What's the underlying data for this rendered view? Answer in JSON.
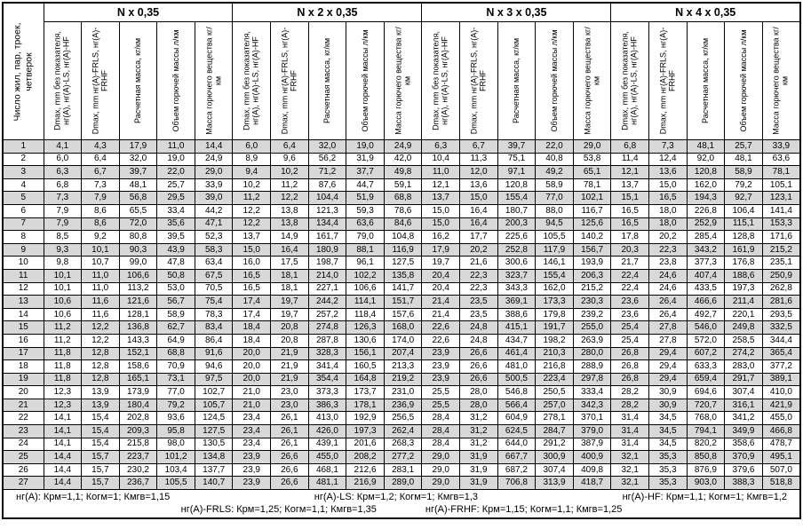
{
  "table": {
    "row_label_header": "Число жил, пар, троек, четверок",
    "groups": [
      "N x 0,35",
      "N x 2 x 0,35",
      "N x 3 x 0,35",
      "N x 4 x 0,35"
    ],
    "sub_headers": [
      "Dmax, mm без показателя, нг(А), нг(А)-LS, нг(А)-HF",
      "Dmax, mm нг(А)-FRLS, нг(А)-FRHF",
      "Расчетная масса, кг/км",
      "Объем горючей массы л/км",
      "Масса горючего вещества кг/км"
    ],
    "rows": [
      {
        "n": "1",
        "values": [
          "4,1",
          "4,3",
          "17,9",
          "11,0",
          "14,4",
          "6,0",
          "6,4",
          "32,0",
          "19,0",
          "24,9",
          "6,3",
          "6,7",
          "39,7",
          "22,0",
          "29,0",
          "6,8",
          "7,3",
          "48,1",
          "25,7",
          "33,9"
        ]
      },
      {
        "n": "2",
        "values": [
          "6,0",
          "6,4",
          "32,0",
          "19,0",
          "24,9",
          "8,9",
          "9,6",
          "56,2",
          "31,9",
          "42,0",
          "10,4",
          "11,3",
          "75,1",
          "40,8",
          "53,8",
          "11,4",
          "12,4",
          "92,0",
          "48,1",
          "63,6"
        ]
      },
      {
        "n": "3",
        "values": [
          "6,3",
          "6,7",
          "39,7",
          "22,0",
          "29,0",
          "9,4",
          "10,2",
          "71,2",
          "37,7",
          "49,8",
          "11,0",
          "12,0",
          "97,1",
          "49,2",
          "65,1",
          "12,1",
          "13,6",
          "120,8",
          "58,9",
          "78,1"
        ]
      },
      {
        "n": "4",
        "values": [
          "6,8",
          "7,3",
          "48,1",
          "25,7",
          "33,9",
          "10,2",
          "11,2",
          "87,6",
          "44,7",
          "59,1",
          "12,1",
          "13,6",
          "120,8",
          "58,9",
          "78,1",
          "13,7",
          "15,0",
          "162,0",
          "79,2",
          "105,1"
        ]
      },
      {
        "n": "5",
        "values": [
          "7,3",
          "7,9",
          "56,8",
          "29,5",
          "39,0",
          "11,2",
          "12,2",
          "104,4",
          "51,9",
          "68,8",
          "13,7",
          "15,0",
          "155,4",
          "77,0",
          "102,1",
          "15,1",
          "16,5",
          "194,3",
          "92,7",
          "123,1"
        ]
      },
      {
        "n": "6",
        "values": [
          "7,9",
          "8,6",
          "65,5",
          "33,4",
          "44,2",
          "12,2",
          "13,8",
          "121,3",
          "59,3",
          "78,6",
          "15,0",
          "16,4",
          "180,7",
          "88,0",
          "116,7",
          "16,5",
          "18,0",
          "226,8",
          "106,4",
          "141,4"
        ]
      },
      {
        "n": "7",
        "values": [
          "7,9",
          "8,6",
          "72,0",
          "35,6",
          "47,1",
          "12,2",
          "13,8",
          "134,4",
          "63,6",
          "84,6",
          "15,0",
          "16,4",
          "200,3",
          "94,5",
          "125,6",
          "16,5",
          "18,0",
          "252,9",
          "115,1",
          "153,3"
        ]
      },
      {
        "n": "8",
        "values": [
          "8,5",
          "9,2",
          "80,8",
          "39,5",
          "52,3",
          "13,7",
          "14,9",
          "161,7",
          "79,0",
          "104,8",
          "16,2",
          "17,7",
          "225,6",
          "105,5",
          "140,2",
          "17,8",
          "20,2",
          "285,4",
          "128,8",
          "171,6"
        ]
      },
      {
        "n": "9",
        "values": [
          "9,3",
          "10,1",
          "90,3",
          "43,9",
          "58,3",
          "15,0",
          "16,4",
          "180,9",
          "88,1",
          "116,9",
          "17,9",
          "20,2",
          "252,8",
          "117,9",
          "156,7",
          "20,3",
          "22,3",
          "343,2",
          "161,9",
          "215,2"
        ]
      },
      {
        "n": "10",
        "values": [
          "9,8",
          "10,7",
          "99,0",
          "47,8",
          "63,4",
          "16,0",
          "17,5",
          "198,7",
          "96,1",
          "127,5",
          "19,7",
          "21,6",
          "300,6",
          "146,1",
          "193,9",
          "21,7",
          "23,8",
          "377,3",
          "176,8",
          "235,1"
        ]
      },
      {
        "n": "11",
        "values": [
          "10,1",
          "11,0",
          "106,6",
          "50,8",
          "67,5",
          "16,5",
          "18,1",
          "214,0",
          "102,2",
          "135,8",
          "20,4",
          "22,3",
          "323,7",
          "155,4",
          "206,3",
          "22,4",
          "24,6",
          "407,4",
          "188,6",
          "250,9"
        ]
      },
      {
        "n": "12",
        "values": [
          "10,1",
          "11,0",
          "113,2",
          "53,0",
          "70,5",
          "16,5",
          "18,1",
          "227,1",
          "106,6",
          "141,7",
          "20,4",
          "22,3",
          "343,3",
          "162,0",
          "215,2",
          "22,4",
          "24,6",
          "433,5",
          "197,3",
          "262,8"
        ]
      },
      {
        "n": "13",
        "values": [
          "10,6",
          "11,6",
          "121,6",
          "56,7",
          "75,4",
          "17,4",
          "19,7",
          "244,2",
          "114,1",
          "151,7",
          "21,4",
          "23,5",
          "369,1",
          "173,3",
          "230,3",
          "23,6",
          "26,4",
          "466,6",
          "211,4",
          "281,6"
        ]
      },
      {
        "n": "14",
        "values": [
          "10,6",
          "11,6",
          "128,1",
          "58,9",
          "78,3",
          "17,4",
          "19,7",
          "257,2",
          "118,4",
          "157,6",
          "21,4",
          "23,5",
          "388,6",
          "179,8",
          "239,2",
          "23,6",
          "26,4",
          "492,7",
          "220,1",
          "293,5"
        ]
      },
      {
        "n": "15",
        "values": [
          "11,2",
          "12,2",
          "136,8",
          "62,7",
          "83,4",
          "18,4",
          "20,8",
          "274,8",
          "126,3",
          "168,0",
          "22,6",
          "24,8",
          "415,1",
          "191,7",
          "255,0",
          "25,4",
          "27,8",
          "546,0",
          "249,8",
          "332,5"
        ]
      },
      {
        "n": "16",
        "values": [
          "11,2",
          "12,2",
          "143,3",
          "64,9",
          "86,4",
          "18,4",
          "20,8",
          "287,8",
          "130,6",
          "174,0",
          "22,6",
          "24,8",
          "434,7",
          "198,2",
          "263,9",
          "25,4",
          "27,8",
          "572,0",
          "258,5",
          "344,4"
        ]
      },
      {
        "n": "17",
        "values": [
          "11,8",
          "12,8",
          "152,1",
          "68,8",
          "91,6",
          "20,0",
          "21,9",
          "328,3",
          "156,1",
          "207,4",
          "23,9",
          "26,6",
          "461,4",
          "210,3",
          "280,0",
          "26,8",
          "29,4",
          "607,2",
          "274,2",
          "365,4"
        ]
      },
      {
        "n": "18",
        "values": [
          "11,8",
          "12,8",
          "158,6",
          "70,9",
          "94,6",
          "20,0",
          "21,9",
          "341,4",
          "160,5",
          "213,3",
          "23,9",
          "26,6",
          "481,0",
          "216,8",
          "288,9",
          "26,8",
          "29,4",
          "633,3",
          "283,0",
          "377,2"
        ]
      },
      {
        "n": "19",
        "values": [
          "11,8",
          "12,8",
          "165,1",
          "73,1",
          "97,5",
          "20,0",
          "21,9",
          "354,4",
          "164,8",
          "219,2",
          "23,9",
          "26,6",
          "500,5",
          "223,4",
          "297,8",
          "26,8",
          "29,4",
          "659,4",
          "291,7",
          "389,1"
        ]
      },
      {
        "n": "20",
        "values": [
          "12,3",
          "13,9",
          "173,9",
          "77,0",
          "102,7",
          "21,0",
          "23,0",
          "373,3",
          "173,7",
          "231,0",
          "25,5",
          "28,0",
          "546,8",
          "250,5",
          "333,4",
          "28,2",
          "30,9",
          "694,6",
          "307,4",
          "410,0"
        ]
      },
      {
        "n": "21",
        "values": [
          "12,3",
          "13,9",
          "180,4",
          "79,2",
          "105,7",
          "21,0",
          "23,0",
          "386,3",
          "178,1",
          "236,9",
          "25,5",
          "28,0",
          "566,4",
          "257,0",
          "342,3",
          "28,2",
          "30,9",
          "720,7",
          "316,1",
          "421,9"
        ]
      },
      {
        "n": "22",
        "values": [
          "14,1",
          "15,4",
          "202,8",
          "93,6",
          "124,5",
          "23,4",
          "26,1",
          "413,0",
          "192,9",
          "256,5",
          "28,4",
          "31,2",
          "604,9",
          "278,1",
          "370,1",
          "31,4",
          "34,5",
          "768,0",
          "341,2",
          "455,0"
        ]
      },
      {
        "n": "23",
        "values": [
          "14,1",
          "15,4",
          "209,3",
          "95,8",
          "127,5",
          "23,4",
          "26,1",
          "426,0",
          "197,3",
          "262,4",
          "28,4",
          "31,2",
          "624,5",
          "284,7",
          "379,0",
          "31,4",
          "34,5",
          "794,1",
          "349,9",
          "466,8"
        ]
      },
      {
        "n": "24",
        "values": [
          "14,1",
          "15,4",
          "215,8",
          "98,0",
          "130,5",
          "23,4",
          "26,1",
          "439,1",
          "201,6",
          "268,3",
          "28,4",
          "31,2",
          "644,0",
          "291,2",
          "387,9",
          "31,4",
          "34,5",
          "820,2",
          "358,6",
          "478,7"
        ]
      },
      {
        "n": "25",
        "values": [
          "14,4",
          "15,7",
          "223,7",
          "101,2",
          "134,8",
          "23,9",
          "26,6",
          "455,0",
          "208,2",
          "277,2",
          "29,0",
          "31,9",
          "667,7",
          "300,9",
          "400,9",
          "32,1",
          "35,3",
          "850,8",
          "370,9",
          "495,1"
        ]
      },
      {
        "n": "26",
        "values": [
          "14,4",
          "15,7",
          "230,2",
          "103,4",
          "137,7",
          "23,9",
          "26,6",
          "468,1",
          "212,6",
          "283,1",
          "29,0",
          "31,9",
          "687,2",
          "307,4",
          "409,8",
          "32,1",
          "35,3",
          "876,9",
          "379,6",
          "507,0"
        ]
      },
      {
        "n": "27",
        "values": [
          "14,4",
          "15,7",
          "236,7",
          "105,5",
          "140,7",
          "23,9",
          "26,6",
          "481,1",
          "216,9",
          "289,0",
          "29,0",
          "31,9",
          "706,8",
          "313,9",
          "418,7",
          "32,1",
          "35,3",
          "903,0",
          "388,3",
          "518,8"
        ]
      }
    ]
  },
  "footer": {
    "line1": [
      "нг(А): Крм=1,1;  Когм=1;  Кмгв=1,15",
      "нг(А)-LS: Крм=1,2;  Когм=1;  Кмгв=1,3",
      "нг(А)-HF: Крм=1,1;  Когм=1;  Кмгв=1,2"
    ],
    "line2": [
      "нг(А)-FRLS: Крм=1,25;  Когм=1,1;  Кмгв=1,35",
      "нг(А)-FRHF: Крм=1,15;  Когм=1,1;  Кмгв=1,25"
    ]
  },
  "colors": {
    "stripe": "#d8d8d8",
    "border": "#000000",
    "background": "#ffffff"
  }
}
